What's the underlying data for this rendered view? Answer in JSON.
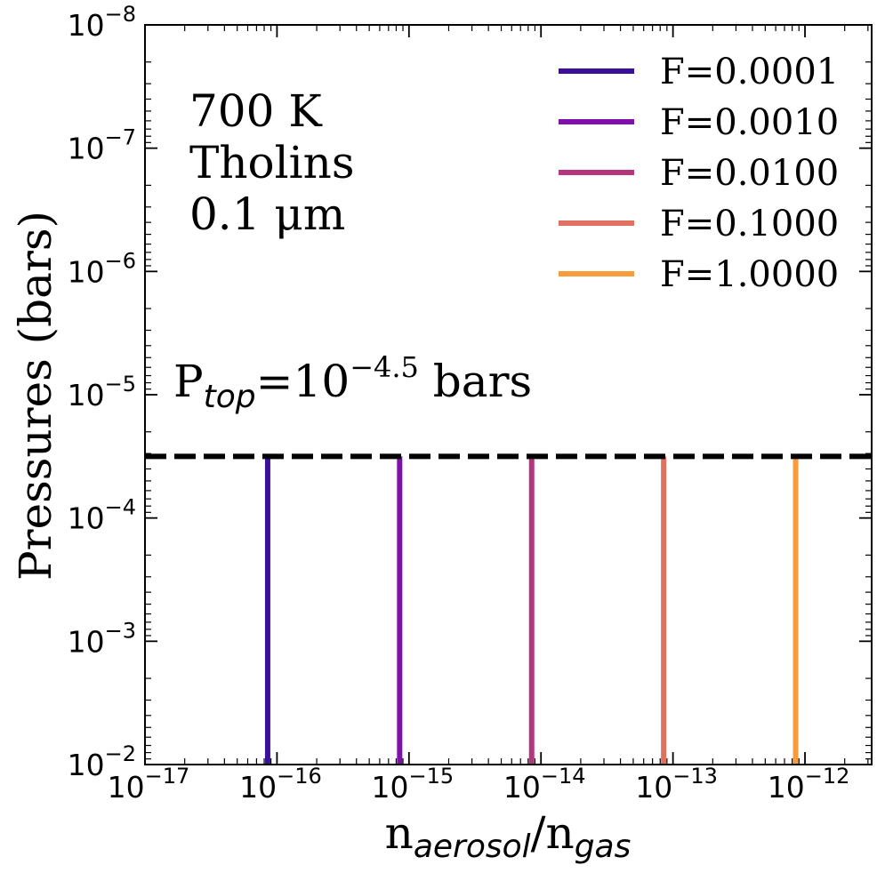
{
  "chart_data": {
    "type": "line",
    "xscale": "log",
    "yscale": "log",
    "xlim": [
      1e-17,
      3.2e-12
    ],
    "ylim": [
      0.01,
      1e-08
    ],
    "y_inverted": true,
    "x_ticks": [
      {
        "base": "10",
        "exp": "−17",
        "value": 1e-17
      },
      {
        "base": "10",
        "exp": "−16",
        "value": 1e-16
      },
      {
        "base": "10",
        "exp": "−15",
        "value": 1e-15
      },
      {
        "base": "10",
        "exp": "−14",
        "value": 1e-14
      },
      {
        "base": "10",
        "exp": "−13",
        "value": 1e-13
      },
      {
        "base": "10",
        "exp": "−12",
        "value": 1e-12
      }
    ],
    "y_ticks": [
      {
        "base": "10",
        "exp": "−8",
        "value": 1e-08
      },
      {
        "base": "10",
        "exp": "−7",
        "value": 1e-07
      },
      {
        "base": "10",
        "exp": "−6",
        "value": 1e-06
      },
      {
        "base": "10",
        "exp": "−5",
        "value": 1e-05
      },
      {
        "base": "10",
        "exp": "−4",
        "value": 0.0001
      },
      {
        "base": "10",
        "exp": "−3",
        "value": 0.001
      },
      {
        "base": "10",
        "exp": "−2",
        "value": 0.01
      }
    ],
    "xlabel": {
      "main": "n",
      "sub1": "aerosol",
      "slash": "/n",
      "sub2": "gas"
    },
    "ylabel": "Pressures (bars)",
    "annotation": [
      "700 K",
      "Tholins",
      "0.1 μm"
    ],
    "ptop_label": {
      "p": "P",
      "sub": "top",
      "eq": "=10",
      "exp": "−4.5",
      "unit": " bars"
    },
    "ptop_value": 3.1623e-05,
    "series": [
      {
        "name": "F=0.0001",
        "color": "#3a0f99",
        "x": [
          8.5e-17,
          8.5e-17
        ],
        "y": [
          3.1623e-05,
          0.01
        ]
      },
      {
        "name": "F=0.0010",
        "color": "#7f10a8",
        "x": [
          8.5e-16,
          8.5e-16
        ],
        "y": [
          3.1623e-05,
          0.01
        ]
      },
      {
        "name": "F=0.0100",
        "color": "#b5367d",
        "x": [
          8.5e-15,
          8.5e-15
        ],
        "y": [
          3.1623e-05,
          0.01
        ]
      },
      {
        "name": "F=0.1000",
        "color": "#e0705f",
        "x": [
          8.5e-14,
          8.5e-14
        ],
        "y": [
          3.1623e-05,
          0.01
        ]
      },
      {
        "name": "F=1.0000",
        "color": "#f89b3a",
        "x": [
          8.5e-13,
          8.5e-13
        ],
        "y": [
          3.1623e-05,
          0.01
        ]
      }
    ],
    "legend_position": "top-right",
    "grid": false
  }
}
